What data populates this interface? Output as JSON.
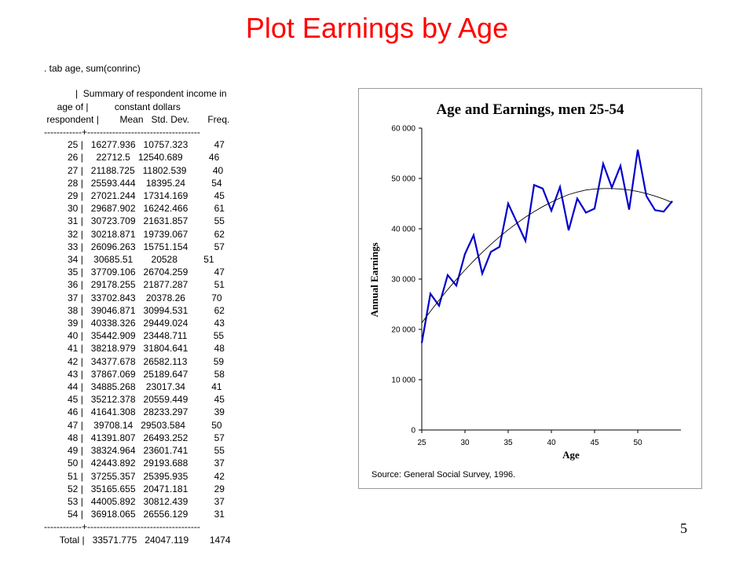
{
  "slide": {
    "title": "Plot Earnings by Age",
    "page_number": "5"
  },
  "stata_output": {
    "lines": [
      ". tab age, sum(conrinc)",
      "",
      "            |  Summary of respondent income in",
      "     age of |          constant dollars",
      " respondent |        Mean   Std. Dev.       Freq.",
      "------------+------------------------------------",
      "         25 |   16277.936   10757.323          47",
      "         26 |     22712.5   12540.689          46",
      "         27 |   21188.725   11802.539          40",
      "         28 |   25593.444    18395.24          54",
      "         29 |   27021.244   17314.169          45",
      "         30 |   29687.902   16242.466          61",
      "         31 |   30723.709   21631.857          55",
      "         32 |   30218.871   19739.067          62",
      "         33 |   26096.263   15751.154          57",
      "         34 |    30685.51       20528          51",
      "         35 |   37709.106   26704.259          47",
      "         36 |   29178.255   21877.287          51",
      "         37 |   33702.843    20378.26          70",
      "         38 |   39046.871   30994.531          62",
      "         39 |   40338.326   29449.024          43",
      "         40 |   35442.909   23448.711          55",
      "         41 |   38218.979   31804.641          48",
      "         42 |   34377.678   26582.113          59",
      "         43 |   37867.069   25189.647          58",
      "         44 |   34885.268    23017.34          41",
      "         45 |   35212.378   20559.449          45",
      "         46 |   41641.308   28233.297          39",
      "         47 |    39708.14   29503.584          50",
      "         48 |   41391.807   26493.252          57",
      "         49 |   38324.964   23601.741          55",
      "         50 |   42443.892   29193.688          37",
      "         51 |   37255.357   25395.935          42",
      "         52 |   35165.655   20471.181          29",
      "         53 |   44005.892   30812.439          37",
      "         54 |   36918.065   26556.129          31",
      "------------+------------------------------------",
      "      Total |   33571.775   24047.119        1474"
    ]
  },
  "chart_data": {
    "type": "line",
    "title": "Age and Earnings, men 25-54",
    "xlabel": "Age",
    "ylabel": "Annual Earnings",
    "source": "Source: General  Social Survey, 1996.",
    "xlim": [
      25,
      55
    ],
    "ylim": [
      0,
      60000
    ],
    "xticks": [
      25,
      30,
      35,
      40,
      45,
      50
    ],
    "yticks": [
      0,
      10000,
      20000,
      30000,
      40000,
      50000,
      60000
    ],
    "xtick_labels": [
      "25",
      "30",
      "35",
      "40",
      "45",
      "50"
    ],
    "ytick_labels": [
      "0",
      "10 000",
      "20 000",
      "30 000",
      "40 000",
      "50 000",
      "60 000"
    ],
    "grid": false,
    "series": [
      {
        "color": "#0000cc",
        "style": "solid",
        "x": [
          25,
          26,
          27,
          28,
          29,
          30,
          31,
          32,
          33,
          34,
          35,
          36,
          37,
          38,
          39,
          40,
          41,
          42,
          43,
          44,
          45,
          46,
          47,
          48,
          49,
          50,
          51,
          52,
          53,
          54
        ],
        "y": [
          17300,
          27100,
          24700,
          30800,
          28700,
          35000,
          38700,
          31100,
          35400,
          36400,
          45000,
          41300,
          37600,
          48700,
          48000,
          43600,
          48300,
          39700,
          46000,
          43200,
          44000,
          52900,
          48200,
          52500,
          43800,
          55700,
          46500,
          43700,
          43400,
          45500
        ]
      },
      {
        "color": "#000000",
        "style": "thin",
        "x": [
          25,
          26,
          27,
          28,
          29,
          30,
          31,
          32,
          33,
          34,
          35,
          36,
          37,
          38,
          39,
          40,
          41,
          42,
          43,
          44,
          45,
          46,
          47,
          48,
          49,
          50,
          51,
          52,
          53,
          54
        ],
        "y": [
          21300,
          23600,
          25800,
          27900,
          29900,
          31800,
          33600,
          35300,
          36900,
          38400,
          39800,
          41100,
          42300,
          43400,
          44400,
          45300,
          46100,
          46800,
          47300,
          47700,
          47900,
          48000,
          48000,
          47900,
          47700,
          47400,
          47000,
          46500,
          45900,
          45200
        ]
      }
    ]
  }
}
